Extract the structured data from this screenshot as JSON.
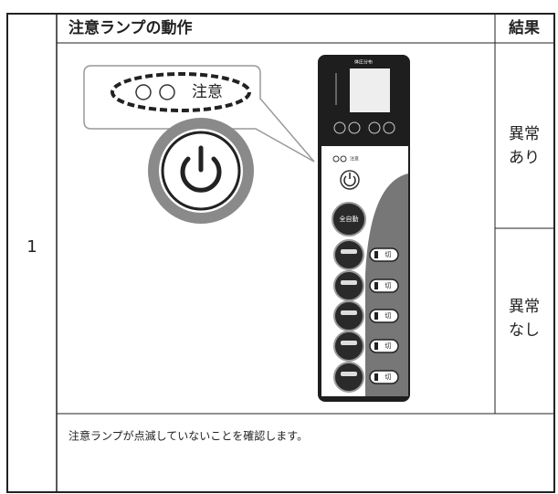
{
  "table": {
    "header": [
      "注意ランプの動作",
      "結果"
    ],
    "row_number": "1",
    "results": [
      [
        "異常",
        "あり"
      ],
      [
        "異常",
        "なし"
      ]
    ],
    "note": "注意ランプが点滅していないことを確認します。"
  },
  "illustration": {
    "callout_label": "注意",
    "panel_title": "体圧分布",
    "lamp_label": "注意",
    "auto_button": "全自動",
    "off_labels": [
      "切",
      "切",
      "切",
      "切",
      "切"
    ]
  }
}
